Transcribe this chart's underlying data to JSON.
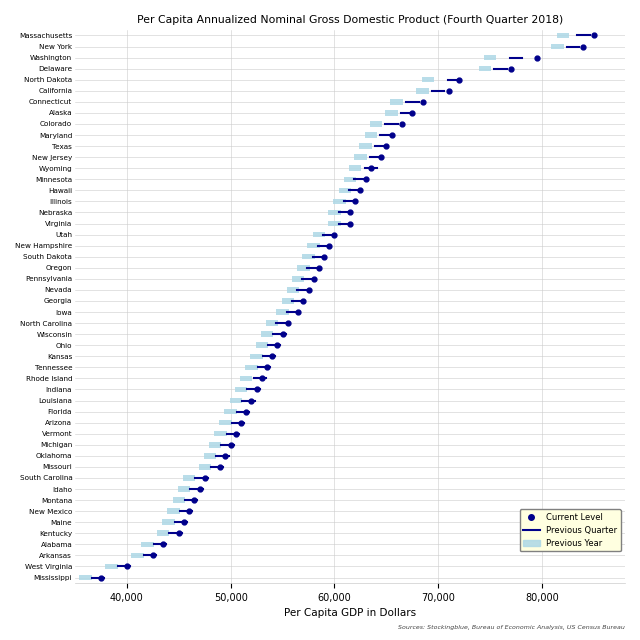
{
  "title": "Per Capita Annualized Nominal Gross Domestic Product (Fourth Quarter 2018)",
  "xlabel": "Per Capita GDP in Dollars",
  "source": "Sources: Stockingblue, Bureau of Economic Analysis, US Census Bureau",
  "states": [
    "Massachusetts",
    "New York",
    "Washington",
    "Delaware",
    "North Dakota",
    "California",
    "Connecticut",
    "Alaska",
    "Colorado",
    "Maryland",
    "Texas",
    "New Jersey",
    "Wyoming",
    "Minnesota",
    "Hawaii",
    "Illinois",
    "Nebraska",
    "Virginia",
    "Utah",
    "New Hampshire",
    "South Dakota",
    "Oregon",
    "Pennsylvania",
    "Nevada",
    "Georgia",
    "Iowa",
    "North Carolina",
    "Wisconsin",
    "Ohio",
    "Kansas",
    "Tennessee",
    "Rhode Island",
    "Indiana",
    "Louisiana",
    "Florida",
    "Arizona",
    "Vermont",
    "Michigan",
    "Oklahoma",
    "Missouri",
    "South Carolina",
    "Idaho",
    "Montana",
    "New Mexico",
    "Maine",
    "Kentucky",
    "Alabama",
    "Arkansas",
    "West Virginia",
    "Mississippi"
  ],
  "current": [
    85000,
    84000,
    79500,
    77000,
    72000,
    71000,
    68500,
    67500,
    66500,
    65500,
    65000,
    64500,
    63500,
    63000,
    62500,
    62000,
    61500,
    61500,
    60000,
    59500,
    59000,
    58500,
    58000,
    57500,
    57000,
    56500,
    55500,
    55000,
    54500,
    54000,
    53500,
    53000,
    52500,
    52000,
    51500,
    51000,
    50500,
    50000,
    49500,
    49000,
    47500,
    47000,
    46500,
    46000,
    45500,
    45000,
    43500,
    42500,
    40000,
    37500
  ],
  "prev_quarter": [
    84000,
    83000,
    77500,
    76000,
    71500,
    70000,
    67500,
    67000,
    65500,
    65000,
    64500,
    64000,
    63500,
    62500,
    62000,
    61500,
    61000,
    61000,
    59500,
    59000,
    58500,
    58000,
    57500,
    57000,
    56500,
    56000,
    55000,
    54700,
    54200,
    53700,
    53200,
    52800,
    52200,
    51700,
    51200,
    50700,
    50200,
    49700,
    49200,
    48700,
    47200,
    46700,
    46200,
    45700,
    45200,
    44700,
    43200,
    42200,
    39700,
    37200
  ],
  "prev_year": [
    82000,
    81500,
    75000,
    74500,
    69000,
    68500,
    66000,
    65500,
    64000,
    63500,
    63000,
    62500,
    62000,
    61500,
    61000,
    60500,
    60000,
    60000,
    58500,
    58000,
    57500,
    57000,
    56500,
    56000,
    55500,
    55000,
    54000,
    53500,
    53000,
    52500,
    52000,
    51500,
    51000,
    50500,
    50000,
    49500,
    49000,
    48500,
    48000,
    47500,
    46000,
    45500,
    45000,
    44500,
    44000,
    43500,
    42000,
    41000,
    38500,
    36000
  ],
  "bg_color": "#ffffff",
  "dot_color": "#00008B",
  "prev_quarter_color": "#00008B",
  "prev_year_color": "#ADD8E6",
  "xlim": [
    35000,
    88000
  ],
  "xticks": [
    40000,
    50000,
    60000,
    70000,
    80000
  ]
}
